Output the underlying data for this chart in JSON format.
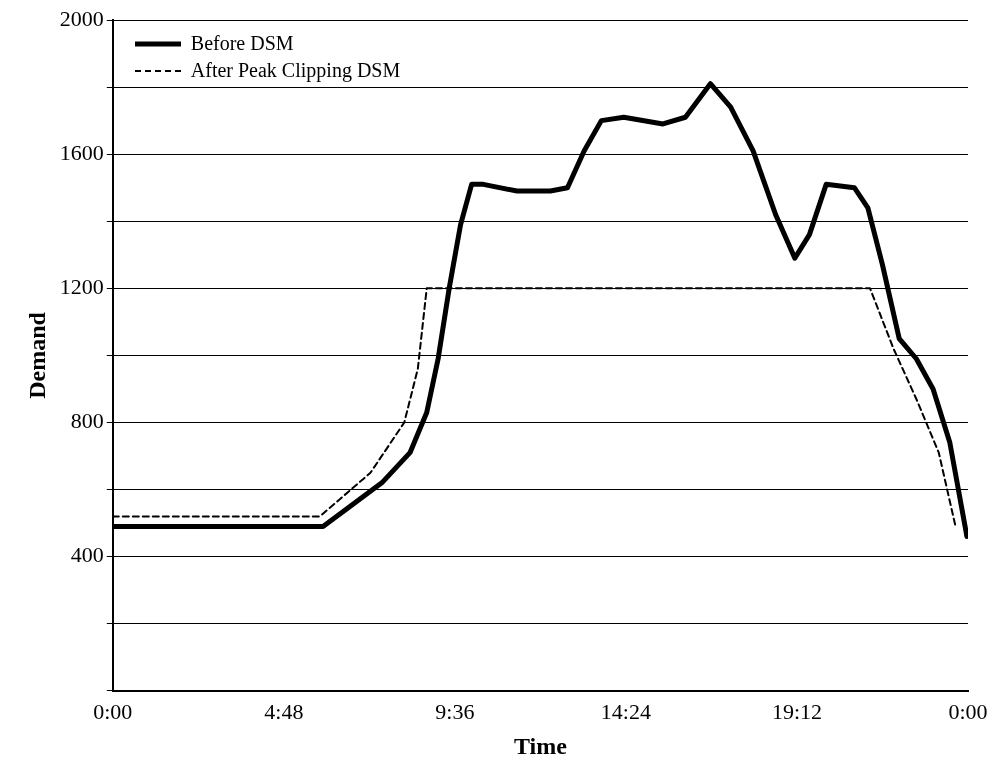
{
  "chart_data": {
    "type": "line",
    "xlabel": "Time",
    "ylabel": "Demand",
    "xlim": [
      0,
      24
    ],
    "xticks": [
      {
        "value": 0,
        "label": "0:00"
      },
      {
        "value": 4.8,
        "label": "4:48"
      },
      {
        "value": 9.6,
        "label": "9:36"
      },
      {
        "value": 14.4,
        "label": "14:24"
      },
      {
        "value": 19.2,
        "label": "19:12"
      },
      {
        "value": 24,
        "label": "0:00"
      }
    ],
    "ylim": [
      0,
      2000
    ],
    "yticks": [
      {
        "value": 0,
        "label": null
      },
      {
        "value": 200,
        "label": null
      },
      400,
      {
        "value": 600,
        "label": null
      },
      800,
      {
        "value": 1000,
        "label": null
      },
      1200,
      {
        "value": 1400,
        "label": null
      },
      1600,
      {
        "value": 1800,
        "label": null
      },
      2000
    ],
    "grid": "y",
    "legend": "top left",
    "marker": "none",
    "series": [
      {
        "name": "Before DSM",
        "color": "#000000",
        "line_style": "solid",
        "x": [
          0,
          5.9,
          7.55,
          8.34,
          8.81,
          9.13,
          9.44,
          9.76,
          10.07,
          10.4,
          11.34,
          12.28,
          12.76,
          13.23,
          13.71,
          14.34,
          15.44,
          16.07,
          16.77,
          17.34,
          17.97,
          18.6,
          19.14,
          19.55,
          20.02,
          20.81,
          21.19,
          21.6,
          22.07,
          22.55,
          23.02,
          23.49,
          23.97
        ],
        "values": [
          490,
          490,
          620,
          710,
          830,
          990,
          1200,
          1390,
          1510,
          1510,
          1490,
          1490,
          1500,
          1610,
          1700,
          1710,
          1690,
          1710,
          1810,
          1740,
          1610,
          1420,
          1290,
          1360,
          1510,
          1500,
          1440,
          1270,
          1050,
          990,
          900,
          740,
          460
        ]
      },
      {
        "name": "After Peak Clipping DSM",
        "color": "#000000",
        "line_style": "dashed",
        "x": [
          0,
          5.81,
          7.23,
          8.18,
          8.56,
          8.81,
          21.25,
          21.91,
          22.55,
          23.18,
          23.65
        ],
        "values": [
          520,
          520,
          650,
          800,
          960,
          1200,
          1200,
          1020,
          870,
          710,
          490
        ]
      }
    ]
  }
}
